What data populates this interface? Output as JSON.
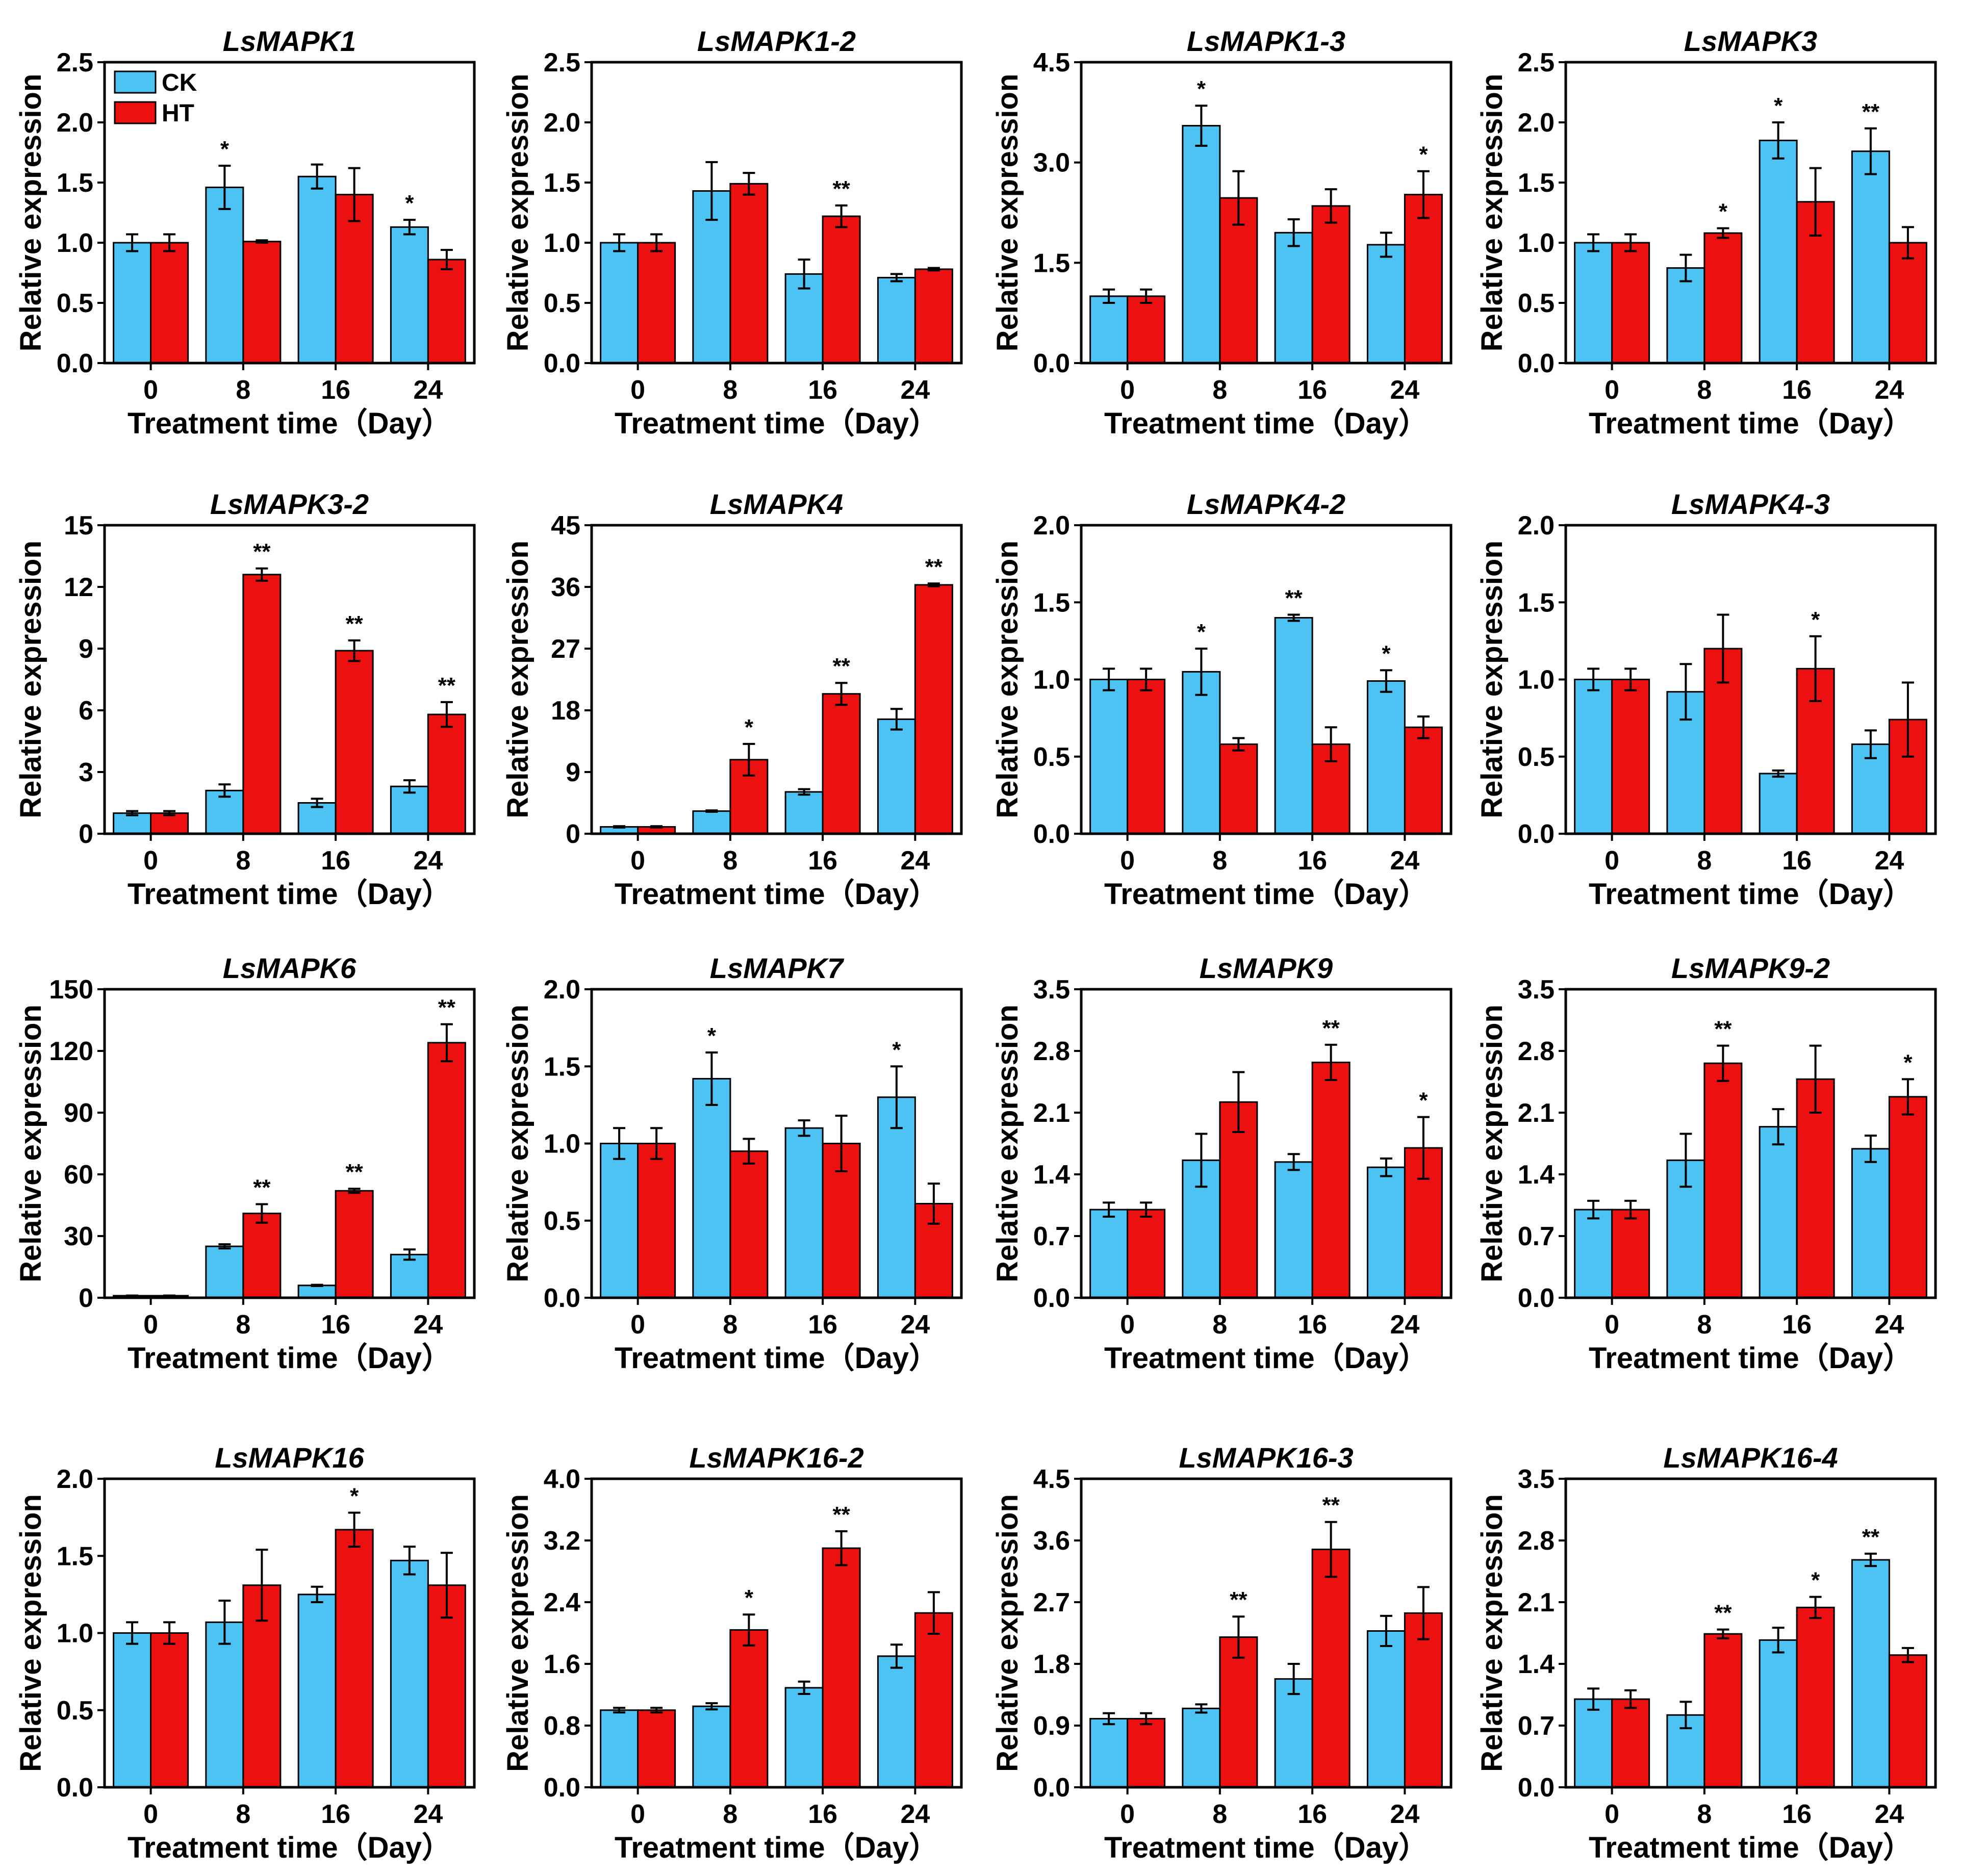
{
  "chart_data": {
    "type": "bar",
    "figure_kind": "multi-panel grouped bar chart with error bars",
    "colors": {
      "CK": "#4dc3f3",
      "HT": "#ec1010"
    },
    "legend": [
      "CK",
      "HT"
    ],
    "categories": [
      "0",
      "8",
      "16",
      "24"
    ],
    "xlabel": "Treatment time（Day）",
    "ylabel": "Relative expression",
    "panels": [
      {
        "title": "LsMAPK1",
        "ylim": [
          0,
          2.5
        ],
        "yticks": [
          "0.0",
          "0.5",
          "1.0",
          "1.5",
          "2.0",
          "2.5"
        ],
        "series": [
          {
            "name": "CK",
            "values": [
              1.0,
              1.46,
              1.55,
              1.13
            ],
            "errors": [
              0.07,
              0.18,
              0.1,
              0.06
            ]
          },
          {
            "name": "HT",
            "values": [
              1.0,
              1.01,
              1.4,
              0.86
            ],
            "errors": [
              0.07,
              0.01,
              0.22,
              0.08
            ]
          }
        ],
        "significance": [
          "",
          "*",
          "",
          "*"
        ]
      },
      {
        "title": "LsMAPK1-2",
        "ylim": [
          0,
          2.5
        ],
        "yticks": [
          "0.0",
          "0.5",
          "1.0",
          "1.5",
          "2.0",
          "2.5"
        ],
        "series": [
          {
            "name": "CK",
            "values": [
              1.0,
              1.43,
              0.74,
              0.71
            ],
            "errors": [
              0.07,
              0.24,
              0.12,
              0.03
            ]
          },
          {
            "name": "HT",
            "values": [
              1.0,
              1.49,
              1.22,
              0.78
            ],
            "errors": [
              0.07,
              0.09,
              0.09,
              0.01
            ]
          }
        ],
        "significance": [
          "",
          "",
          "**",
          ""
        ]
      },
      {
        "title": "LsMAPK1-3",
        "ylim": [
          0,
          4.5
        ],
        "yticks": [
          "0.0",
          "1.5",
          "3.0",
          "4.5"
        ],
        "series": [
          {
            "name": "CK",
            "values": [
              1.0,
              3.55,
              1.95,
              1.77
            ],
            "errors": [
              0.1,
              0.3,
              0.2,
              0.18
            ]
          },
          {
            "name": "HT",
            "values": [
              1.0,
              2.47,
              2.35,
              2.52
            ],
            "errors": [
              0.1,
              0.4,
              0.25,
              0.35
            ]
          }
        ],
        "significance": [
          "",
          "*",
          "",
          "*"
        ]
      },
      {
        "title": "LsMAPK3",
        "ylim": [
          0,
          2.5
        ],
        "yticks": [
          "0.0",
          "0.5",
          "1.0",
          "1.5",
          "2.0",
          "2.5"
        ],
        "series": [
          {
            "name": "CK",
            "values": [
              1.0,
              0.79,
              1.85,
              1.76
            ],
            "errors": [
              0.07,
              0.11,
              0.15,
              0.19
            ]
          },
          {
            "name": "HT",
            "values": [
              1.0,
              1.08,
              1.34,
              1.0
            ],
            "errors": [
              0.07,
              0.04,
              0.28,
              0.13
            ]
          }
        ],
        "significance": [
          "",
          "*",
          "*",
          "**"
        ]
      },
      {
        "title": "LsMAPK3-2",
        "ylim": [
          0,
          15
        ],
        "yticks": [
          "0",
          "3",
          "6",
          "9",
          "12",
          "15"
        ],
        "series": [
          {
            "name": "CK",
            "values": [
              1.0,
              2.1,
              1.5,
              2.3
            ],
            "errors": [
              0.1,
              0.3,
              0.2,
              0.3
            ]
          },
          {
            "name": "HT",
            "values": [
              1.0,
              12.6,
              8.9,
              5.8
            ],
            "errors": [
              0.1,
              0.3,
              0.5,
              0.6
            ]
          }
        ],
        "significance": [
          "",
          "**",
          "**",
          "**"
        ]
      },
      {
        "title": "LsMAPK4",
        "ylim": [
          0,
          45
        ],
        "yticks": [
          "0",
          "9",
          "18",
          "27",
          "36",
          "45"
        ],
        "series": [
          {
            "name": "CK",
            "values": [
              1.0,
              3.3,
              6.1,
              16.7
            ],
            "errors": [
              0.1,
              0.1,
              0.4,
              1.5
            ]
          },
          {
            "name": "HT",
            "values": [
              1.0,
              10.8,
              20.4,
              36.3
            ],
            "errors": [
              0.1,
              2.3,
              1.6,
              0.2
            ]
          }
        ],
        "significance": [
          "",
          "*",
          "**",
          "**"
        ]
      },
      {
        "title": "LsMAPK4-2",
        "ylim": [
          0,
          2.0
        ],
        "yticks": [
          "0.0",
          "0.5",
          "1.0",
          "1.5",
          "2.0"
        ],
        "series": [
          {
            "name": "CK",
            "values": [
              1.0,
              1.05,
              1.4,
              0.99
            ],
            "errors": [
              0.07,
              0.15,
              0.02,
              0.07
            ]
          },
          {
            "name": "HT",
            "values": [
              1.0,
              0.58,
              0.58,
              0.69
            ],
            "errors": [
              0.07,
              0.04,
              0.11,
              0.07
            ]
          }
        ],
        "significance": [
          "",
          "*",
          "**",
          "*"
        ]
      },
      {
        "title": "LsMAPK4-3",
        "ylim": [
          0,
          2.0
        ],
        "yticks": [
          "0.0",
          "0.5",
          "1.0",
          "1.5",
          "2.0"
        ],
        "series": [
          {
            "name": "CK",
            "values": [
              1.0,
              0.92,
              0.39,
              0.58
            ],
            "errors": [
              0.07,
              0.18,
              0.02,
              0.09
            ]
          },
          {
            "name": "HT",
            "values": [
              1.0,
              1.2,
              1.07,
              0.74
            ],
            "errors": [
              0.07,
              0.22,
              0.21,
              0.24
            ]
          }
        ],
        "significance": [
          "",
          "",
          "*",
          ""
        ]
      },
      {
        "title": "LsMAPK6",
        "ylim": [
          0,
          150
        ],
        "yticks": [
          "0",
          "30",
          "60",
          "90",
          "120",
          "150"
        ],
        "series": [
          {
            "name": "CK",
            "values": [
              1.0,
              25.0,
              6.0,
              21.0
            ],
            "errors": [
              0.1,
              1.0,
              0.3,
              2.5
            ]
          },
          {
            "name": "HT",
            "values": [
              1.0,
              41.0,
              52.0,
              124.0
            ],
            "errors": [
              0.1,
              4.5,
              1.0,
              9.0
            ]
          }
        ],
        "significance": [
          "",
          "**",
          "**",
          "**"
        ]
      },
      {
        "title": "LsMAPK7",
        "ylim": [
          0,
          2.0
        ],
        "yticks": [
          "0.0",
          "0.5",
          "1.0",
          "1.5",
          "2.0"
        ],
        "series": [
          {
            "name": "CK",
            "values": [
              1.0,
              1.42,
              1.1,
              1.3
            ],
            "errors": [
              0.1,
              0.17,
              0.05,
              0.2
            ]
          },
          {
            "name": "HT",
            "values": [
              1.0,
              0.95,
              1.0,
              0.61
            ],
            "errors": [
              0.1,
              0.08,
              0.18,
              0.13
            ]
          }
        ],
        "significance": [
          "",
          "*",
          "",
          "*"
        ]
      },
      {
        "title": "LsMAPK9",
        "ylim": [
          0,
          3.5
        ],
        "yticks": [
          "0.0",
          "0.7",
          "1.4",
          "2.1",
          "2.8",
          "3.5"
        ],
        "series": [
          {
            "name": "CK",
            "values": [
              1.0,
              1.56,
              1.54,
              1.48
            ],
            "errors": [
              0.08,
              0.3,
              0.09,
              0.1
            ]
          },
          {
            "name": "HT",
            "values": [
              1.0,
              2.22,
              2.67,
              1.7
            ],
            "errors": [
              0.08,
              0.34,
              0.2,
              0.35
            ]
          }
        ],
        "significance": [
          "",
          "",
          "**",
          "*"
        ]
      },
      {
        "title": "LsMAPK9-2",
        "ylim": [
          0,
          3.5
        ],
        "yticks": [
          "0.0",
          "0.7",
          "1.4",
          "2.1",
          "2.8",
          "3.5"
        ],
        "series": [
          {
            "name": "CK",
            "values": [
              1.0,
              1.56,
              1.94,
              1.69
            ],
            "errors": [
              0.1,
              0.3,
              0.2,
              0.15
            ]
          },
          {
            "name": "HT",
            "values": [
              1.0,
              2.66,
              2.48,
              2.28
            ],
            "errors": [
              0.1,
              0.2,
              0.38,
              0.2
            ]
          }
        ],
        "significance": [
          "",
          "**",
          "",
          "*"
        ]
      },
      {
        "title": "LsMAPK16",
        "ylim": [
          0,
          2.0
        ],
        "yticks": [
          "0.0",
          "0.5",
          "1.0",
          "1.5",
          "2.0"
        ],
        "series": [
          {
            "name": "CK",
            "values": [
              1.0,
              1.07,
              1.25,
              1.47
            ],
            "errors": [
              0.07,
              0.14,
              0.05,
              0.09
            ]
          },
          {
            "name": "HT",
            "values": [
              1.0,
              1.31,
              1.67,
              1.31
            ],
            "errors": [
              0.07,
              0.23,
              0.11,
              0.21
            ]
          }
        ],
        "significance": [
          "",
          "",
          "*",
          ""
        ]
      },
      {
        "title": "LsMAPK16-2",
        "ylim": [
          0,
          4.0
        ],
        "yticks": [
          "0.0",
          "0.8",
          "1.6",
          "2.4",
          "3.2",
          "4.0"
        ],
        "series": [
          {
            "name": "CK",
            "values": [
              1.0,
              1.05,
              1.29,
              1.7
            ],
            "errors": [
              0.03,
              0.04,
              0.08,
              0.15
            ]
          },
          {
            "name": "HT",
            "values": [
              1.0,
              2.04,
              3.1,
              2.26
            ],
            "errors": [
              0.03,
              0.2,
              0.22,
              0.27
            ]
          }
        ],
        "significance": [
          "",
          "*",
          "**",
          ""
        ]
      },
      {
        "title": "LsMAPK16-3",
        "ylim": [
          0,
          4.5
        ],
        "yticks": [
          "0.0",
          "0.9",
          "1.8",
          "2.7",
          "3.6",
          "4.5"
        ],
        "series": [
          {
            "name": "CK",
            "values": [
              1.0,
              1.15,
              1.58,
              2.28
            ],
            "errors": [
              0.08,
              0.06,
              0.22,
              0.22
            ]
          },
          {
            "name": "HT",
            "values": [
              1.0,
              2.19,
              3.47,
              2.54
            ],
            "errors": [
              0.08,
              0.3,
              0.4,
              0.38
            ]
          }
        ],
        "significance": [
          "",
          "**",
          "**",
          ""
        ]
      },
      {
        "title": "LsMAPK16-4",
        "ylim": [
          0,
          3.5
        ],
        "yticks": [
          "0.0",
          "0.7",
          "1.4",
          "2.1",
          "2.8",
          "3.5"
        ],
        "series": [
          {
            "name": "CK",
            "values": [
              1.0,
              0.82,
              1.67,
              2.58
            ],
            "errors": [
              0.12,
              0.15,
              0.14,
              0.07
            ]
          },
          {
            "name": "HT",
            "values": [
              1.0,
              1.74,
              2.04,
              1.5
            ],
            "errors": [
              0.1,
              0.05,
              0.12,
              0.08
            ]
          }
        ],
        "significance": [
          "",
          "**",
          "*",
          "**"
        ]
      }
    ]
  }
}
